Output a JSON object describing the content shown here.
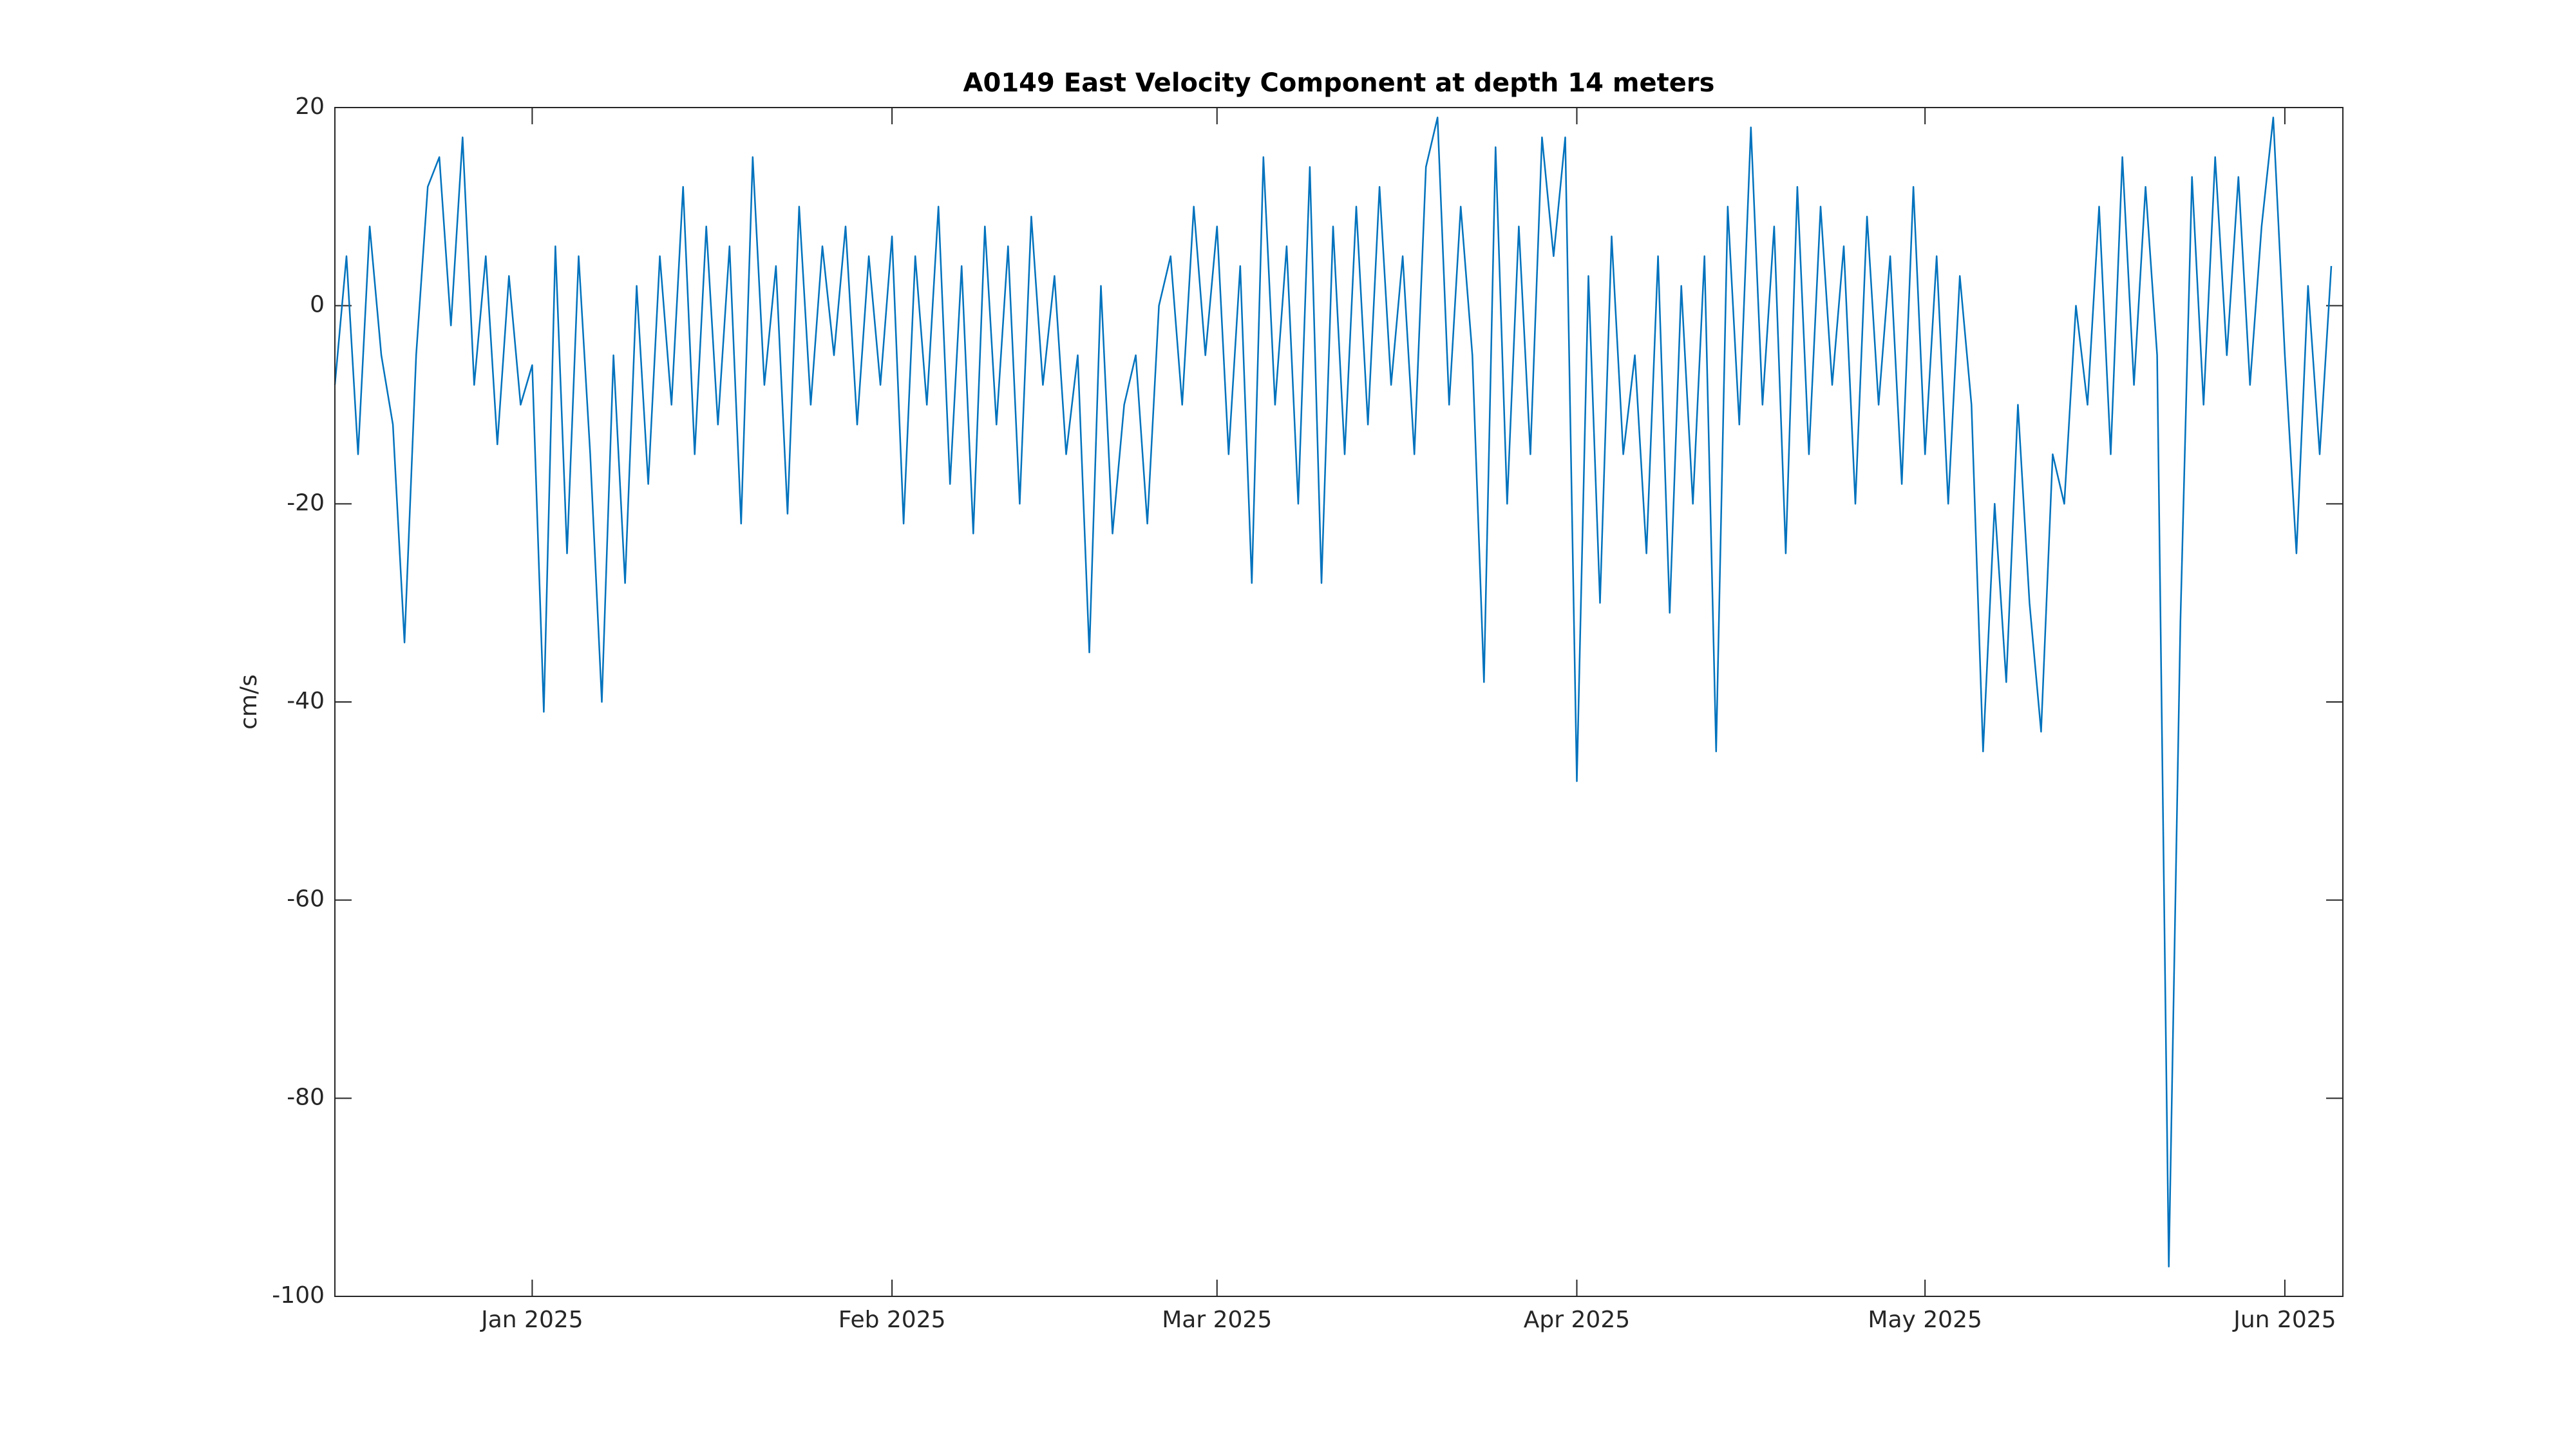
{
  "chart_data": {
    "type": "line",
    "title": "A0149 East Velocity Component at depth 14 meters",
    "y_label": "cm/s",
    "color": "#0072bd",
    "grid": false,
    "xlim": [
      "2024-12-15",
      "2025-06-06"
    ],
    "xticks": [
      {
        "value": "2025-01-01",
        "label": "Jan 2025"
      },
      {
        "value": "2025-02-01",
        "label": "Feb 2025"
      },
      {
        "value": "2025-03-01",
        "label": "Mar 2025"
      },
      {
        "value": "2025-04-01",
        "label": "Apr 2025"
      },
      {
        "value": "2025-05-01",
        "label": "May 2025"
      },
      {
        "value": "2025-06-01",
        "label": "Jun 2025"
      }
    ],
    "ylim": [
      -100,
      20
    ],
    "yticks": [
      -100,
      -80,
      -60,
      -40,
      -20,
      0,
      20
    ],
    "x": [
      "2024-12-15",
      "2024-12-16",
      "2024-12-17",
      "2024-12-18",
      "2024-12-19",
      "2024-12-20",
      "2024-12-21",
      "2024-12-22",
      "2024-12-23",
      "2024-12-24",
      "2024-12-25",
      "2024-12-26",
      "2024-12-27",
      "2024-12-28",
      "2024-12-29",
      "2024-12-30",
      "2024-12-31",
      "2025-01-01",
      "2025-01-02",
      "2025-01-03",
      "2025-01-04",
      "2025-01-05",
      "2025-01-06",
      "2025-01-07",
      "2025-01-08",
      "2025-01-09",
      "2025-01-10",
      "2025-01-11",
      "2025-01-12",
      "2025-01-13",
      "2025-01-14",
      "2025-01-15",
      "2025-01-16",
      "2025-01-17",
      "2025-01-18",
      "2025-01-19",
      "2025-01-20",
      "2025-01-21",
      "2025-01-22",
      "2025-01-23",
      "2025-01-24",
      "2025-01-25",
      "2025-01-26",
      "2025-01-27",
      "2025-01-28",
      "2025-01-29",
      "2025-01-30",
      "2025-01-31",
      "2025-02-01",
      "2025-02-02",
      "2025-02-03",
      "2025-02-04",
      "2025-02-05",
      "2025-02-06",
      "2025-02-07",
      "2025-02-08",
      "2025-02-09",
      "2025-02-10",
      "2025-02-11",
      "2025-02-12",
      "2025-02-13",
      "2025-02-14",
      "2025-02-15",
      "2025-02-16",
      "2025-02-17",
      "2025-02-18",
      "2025-02-19",
      "2025-02-20",
      "2025-02-21",
      "2025-02-22",
      "2025-02-23",
      "2025-02-24",
      "2025-02-25",
      "2025-02-26",
      "2025-02-27",
      "2025-02-28",
      "2025-03-01",
      "2025-03-02",
      "2025-03-03",
      "2025-03-04",
      "2025-03-05",
      "2025-03-06",
      "2025-03-07",
      "2025-03-08",
      "2025-03-09",
      "2025-03-10",
      "2025-03-11",
      "2025-03-12",
      "2025-03-13",
      "2025-03-14",
      "2025-03-15",
      "2025-03-16",
      "2025-03-17",
      "2025-03-18",
      "2025-03-19",
      "2025-03-20",
      "2025-03-21",
      "2025-03-22",
      "2025-03-23",
      "2025-03-24",
      "2025-03-25",
      "2025-03-26",
      "2025-03-27",
      "2025-03-28",
      "2025-03-29",
      "2025-03-30",
      "2025-03-31",
      "2025-04-01",
      "2025-04-02",
      "2025-04-03",
      "2025-04-04",
      "2025-04-05",
      "2025-04-06",
      "2025-04-07",
      "2025-04-08",
      "2025-04-09",
      "2025-04-10",
      "2025-04-11",
      "2025-04-12",
      "2025-04-13",
      "2025-04-14",
      "2025-04-15",
      "2025-04-16",
      "2025-04-17",
      "2025-04-18",
      "2025-04-19",
      "2025-04-20",
      "2025-04-21",
      "2025-04-22",
      "2025-04-23",
      "2025-04-24",
      "2025-04-25",
      "2025-04-26",
      "2025-04-27",
      "2025-04-28",
      "2025-04-29",
      "2025-04-30",
      "2025-05-01",
      "2025-05-02",
      "2025-05-03",
      "2025-05-04",
      "2025-05-05",
      "2025-05-06",
      "2025-05-07",
      "2025-05-08",
      "2025-05-09",
      "2025-05-10",
      "2025-05-11",
      "2025-05-12",
      "2025-05-13",
      "2025-05-14",
      "2025-05-15",
      "2025-05-16",
      "2025-05-17",
      "2025-05-18",
      "2025-05-19",
      "2025-05-20",
      "2025-05-21",
      "2025-05-22",
      "2025-05-23",
      "2025-05-24",
      "2025-05-25",
      "2025-05-26",
      "2025-05-27",
      "2025-05-28",
      "2025-05-29",
      "2025-05-30",
      "2025-05-31",
      "2025-06-01",
      "2025-06-02",
      "2025-06-03",
      "2025-06-04",
      "2025-06-05"
    ],
    "values": [
      -8,
      5,
      -15,
      8,
      -5,
      -12,
      -34,
      -5,
      12,
      15,
      -2,
      17,
      -8,
      5,
      -14,
      3,
      -10,
      -6,
      -41,
      6,
      -25,
      5,
      -15,
      -40,
      -5,
      -28,
      2,
      -18,
      5,
      -10,
      12,
      -15,
      8,
      -12,
      6,
      -22,
      15,
      -8,
      4,
      -21,
      10,
      -10,
      6,
      -5,
      8,
      -12,
      5,
      -8,
      7,
      -22,
      5,
      -10,
      10,
      -18,
      4,
      -23,
      8,
      -12,
      6,
      -20,
      9,
      -8,
      3,
      -15,
      -5,
      -35,
      2,
      -23,
      -10,
      -5,
      -22,
      0,
      5,
      -10,
      10,
      -5,
      8,
      -15,
      4,
      -28,
      15,
      -10,
      6,
      -20,
      14,
      -28,
      8,
      -15,
      10,
      -12,
      12,
      -8,
      5,
      -15,
      14,
      19,
      -10,
      10,
      -5,
      -38,
      16,
      -20,
      8,
      -15,
      17,
      5,
      17,
      -48,
      3,
      -30,
      7,
      -15,
      -5,
      -25,
      5,
      -31,
      2,
      -20,
      5,
      -45,
      10,
      -12,
      18,
      -10,
      8,
      -25,
      12,
      -15,
      10,
      -8,
      6,
      -20,
      9,
      -10,
      5,
      -18,
      12,
      -15,
      5,
      -20,
      3,
      -10,
      -45,
      -20,
      -38,
      -10,
      -30,
      -43,
      -15,
      -20,
      0,
      -10,
      10,
      -15,
      15,
      -8,
      12,
      -5,
      -97,
      -32,
      13,
      -10,
      15,
      -5,
      13,
      -8,
      8,
      19,
      -5,
      -25,
      2,
      -15,
      4
    ]
  }
}
